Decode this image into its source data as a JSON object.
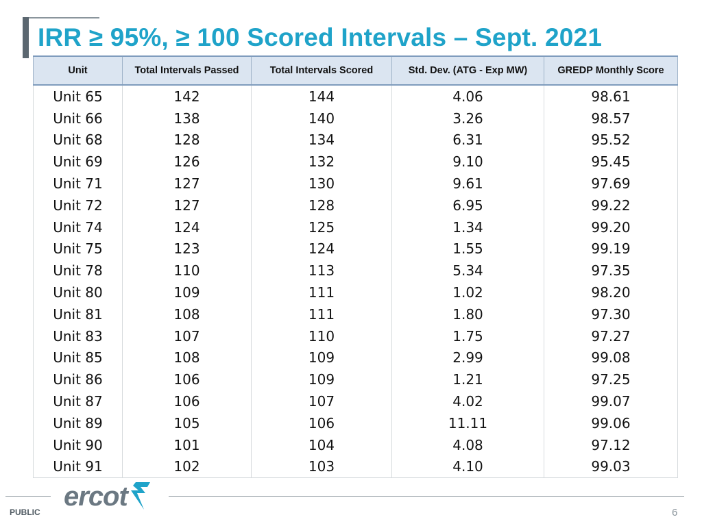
{
  "slide": {
    "title": "IRR ≥ 95%, ≥ 100 Scored Intervals – Sept. 2021"
  },
  "table": {
    "headers": [
      "Unit",
      "Total Intervals Passed",
      "Total Intervals Scored",
      "Std. Dev. (ATG - Exp MW)",
      "GREDP Monthly Score"
    ],
    "rows": [
      [
        "Unit 65",
        "142",
        "144",
        "4.06",
        "98.61"
      ],
      [
        "Unit 66",
        "138",
        "140",
        "3.26",
        "98.57"
      ],
      [
        "Unit 68",
        "128",
        "134",
        "6.31",
        "95.52"
      ],
      [
        "Unit 69",
        "126",
        "132",
        "9.10",
        "95.45"
      ],
      [
        "Unit 71",
        "127",
        "130",
        "9.61",
        "97.69"
      ],
      [
        "Unit 72",
        "127",
        "128",
        "6.95",
        "99.22"
      ],
      [
        "Unit 74",
        "124",
        "125",
        "1.34",
        "99.20"
      ],
      [
        "Unit 75",
        "123",
        "124",
        "1.55",
        "99.19"
      ],
      [
        "Unit 78",
        "110",
        "113",
        "5.34",
        "97.35"
      ],
      [
        "Unit 80",
        "109",
        "111",
        "1.02",
        "98.20"
      ],
      [
        "Unit 81",
        "108",
        "111",
        "1.80",
        "97.30"
      ],
      [
        "Unit 83",
        "107",
        "110",
        "1.75",
        "97.27"
      ],
      [
        "Unit 85",
        "108",
        "109",
        "2.99",
        "99.08"
      ],
      [
        "Unit 86",
        "106",
        "109",
        "1.21",
        "97.25"
      ],
      [
        "Unit 87",
        "106",
        "107",
        "4.02",
        "99.07"
      ],
      [
        "Unit 89",
        "105",
        "106",
        "11.11",
        "99.06"
      ],
      [
        "Unit 90",
        "101",
        "104",
        "4.08",
        "97.12"
      ],
      [
        "Unit 91",
        "102",
        "103",
        "4.10",
        "99.03"
      ]
    ]
  },
  "footer": {
    "logo_text": "ercot",
    "classification": "PUBLIC",
    "page_number": "6"
  },
  "colors": {
    "title": "#1fa3c9",
    "header_bg": "#dbe5f1",
    "logo": "#6b7882"
  },
  "icons": {
    "logo_mark": "ercot-lightning-icon"
  }
}
